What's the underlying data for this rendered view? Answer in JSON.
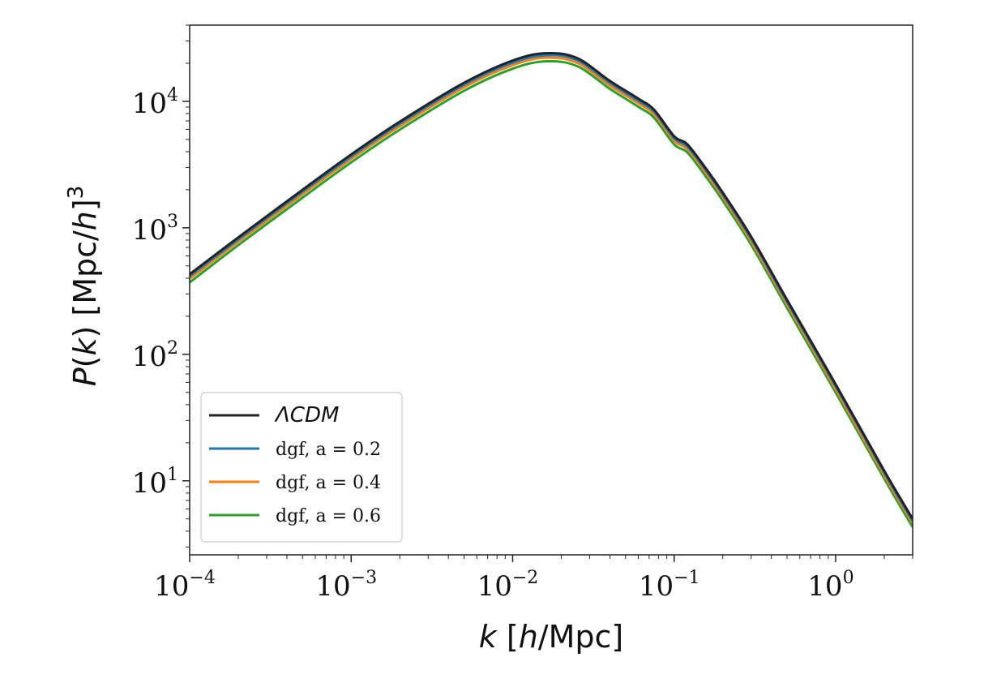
{
  "chart_data": {
    "type": "line",
    "title": "",
    "xlabel": "k  [h/Mpc]",
    "ylabel": "P(k)  [Mpc/h]3",
    "xscale": "log",
    "yscale": "log",
    "xlim": [
      0.0001,
      3.0
    ],
    "ylim": [
      2.6,
      40000
    ],
    "x_ticks": [
      {
        "value": 0.0001,
        "label": "10",
        "exp": "−4"
      },
      {
        "value": 0.001,
        "label": "10",
        "exp": "−3"
      },
      {
        "value": 0.01,
        "label": "10",
        "exp": "−2"
      },
      {
        "value": 0.1,
        "label": "10",
        "exp": "−1"
      },
      {
        "value": 1,
        "label": "10",
        "exp": "0"
      }
    ],
    "y_ticks": [
      {
        "value": 10,
        "label": "10",
        "exp": "1"
      },
      {
        "value": 100,
        "label": "10",
        "exp": "2"
      },
      {
        "value": 1000,
        "label": "10",
        "exp": "3"
      },
      {
        "value": 10000,
        "label": "10",
        "exp": "4"
      }
    ],
    "grid": false,
    "legend_position": "lower-left",
    "x": [
      0.0001,
      0.0002,
      0.0005,
      0.001,
      0.002,
      0.005,
      0.01,
      0.016,
      0.025,
      0.04,
      0.06,
      0.075,
      0.1,
      0.12,
      0.15,
      0.2,
      0.3,
      0.5,
      1.0,
      2.0,
      3.0
    ],
    "series": [
      {
        "name": "ΛCDM",
        "color": "#222222",
        "values": [
          430,
          840,
          2000,
          3800,
          6900,
          14000,
          21000,
          24000,
          22000,
          14500,
          10500,
          8600,
          5300,
          4600,
          3200,
          1900,
          850,
          270,
          58,
          12,
          5.0
        ]
      },
      {
        "name": "dgf, a = 0.2",
        "color": "#1f77b4",
        "values": [
          415,
          810,
          1930,
          3660,
          6650,
          13500,
          20200,
          23100,
          21200,
          14000,
          10100,
          8300,
          5100,
          4420,
          3080,
          1830,
          820,
          260,
          56,
          11.6,
          4.8
        ]
      },
      {
        "name": "dgf, a = 0.4",
        "color": "#ff7f0e",
        "values": [
          395,
          775,
          1840,
          3500,
          6350,
          12900,
          19300,
          22100,
          20200,
          13350,
          9650,
          7900,
          4870,
          4230,
          2940,
          1750,
          780,
          248,
          53,
          11.0,
          4.6
        ]
      },
      {
        "name": "dgf, a = 0.6",
        "color": "#2ca02c",
        "values": [
          370,
          730,
          1730,
          3290,
          5970,
          12100,
          18100,
          20700,
          19000,
          12550,
          9060,
          7420,
          4570,
          3970,
          2760,
          1640,
          735,
          233,
          50,
          10.4,
          4.3
        ]
      }
    ]
  }
}
